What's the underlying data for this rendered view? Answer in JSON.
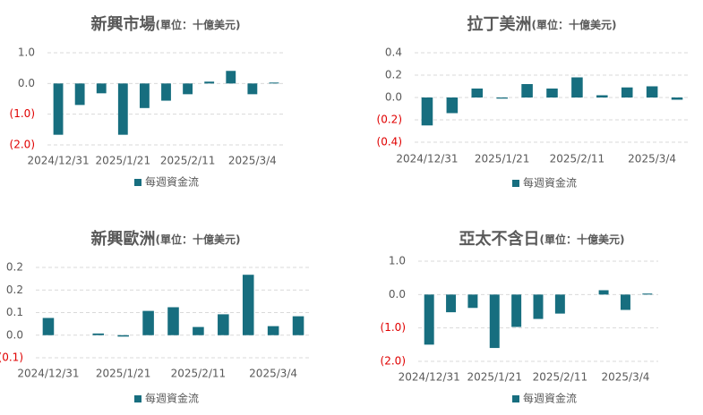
{
  "chart_data": [
    {
      "type": "bar",
      "title": "新興市場",
      "unit": "(單位：十億美元)",
      "categories": [
        "2024/12/31",
        null,
        null,
        "2025/1/21",
        null,
        null,
        "2025/2/11",
        null,
        null,
        "2025/3/4",
        null
      ],
      "series": [
        {
          "name": "每週資金流",
          "color": "#176e7f",
          "values": [
            -1.67,
            -0.7,
            -0.32,
            -1.67,
            -0.8,
            -0.56,
            -0.35,
            0.06,
            0.41,
            -0.35,
            0.03
          ]
        }
      ],
      "ylim": [
        -2,
        1
      ],
      "yticks": [
        {
          "value": 1,
          "label": "1.0"
        },
        {
          "value": 0,
          "label": "0.0"
        },
        {
          "value": -1,
          "label": "(1.0)"
        },
        {
          "value": -2,
          "label": "(2.0)"
        }
      ],
      "grid": true,
      "legend": "bottom",
      "negative_label_color": "#e00000"
    },
    {
      "type": "bar",
      "title": "拉丁美洲",
      "unit": "(單位：十億美元)",
      "categories": [
        "2024/12/31",
        null,
        null,
        "2025/1/21",
        null,
        null,
        "2025/2/11",
        null,
        null,
        "2025/3/4",
        null
      ],
      "series": [
        {
          "name": "每週資金流",
          "color": "#176e7f",
          "values": [
            -0.25,
            -0.14,
            0.08,
            -0.01,
            0.12,
            0.08,
            0.18,
            0.02,
            0.09,
            0.1,
            -0.02
          ]
        }
      ],
      "ylim": [
        -0.4,
        0.4
      ],
      "yticks": [
        0.4,
        0.2,
        {
          "value": 0,
          "label": "0.0"
        },
        {
          "value": -0.2,
          "label": "(0.2)"
        },
        {
          "value": -0.4,
          "label": "(0.4)"
        }
      ],
      "grid": true,
      "legend": "bottom",
      "negative_label_color": "#e00000"
    },
    {
      "type": "bar",
      "title": "新興歐洲",
      "unit": "(單位：十億美元)",
      "categories": [
        "2024/12/31",
        null,
        null,
        "2025/1/21",
        null,
        null,
        "2025/2/11",
        null,
        null,
        "2025/3/4",
        null
      ],
      "series": [
        {
          "name": "每週資金流",
          "color": "#176e7f",
          "values": [
            0.061,
            0,
            0.006,
            -0.005,
            0.086,
            0.099,
            0.029,
            0.074,
            0.214,
            0.032,
            0.067
          ]
        }
      ],
      "ylim": [
        -0.08,
        0.24
      ],
      "yticks": [
        {
          "value": 0.24,
          "label": "0.2"
        },
        {
          "value": 0.16,
          "label": "0.2"
        },
        {
          "value": 0.08,
          "label": "0.1"
        },
        {
          "value": 0,
          "label": "0.0"
        },
        {
          "value": -0.08,
          "label": "(0.1)"
        }
      ],
      "grid": true,
      "legend": "bottom",
      "negative_label_color": "#e00000"
    },
    {
      "type": "bar",
      "title": "亞太不含日",
      "unit": "(單位：十億美元)",
      "categories": [
        "2024/12/31",
        null,
        null,
        "2025/1/21",
        null,
        null,
        "2025/2/11",
        null,
        null,
        "2025/3/4",
        null
      ],
      "series": [
        {
          "name": "每週資金流",
          "color": "#176e7f",
          "values": [
            -1.5,
            -0.53,
            -0.4,
            -1.6,
            -0.97,
            -0.73,
            -0.57,
            0,
            0.13,
            -0.46,
            0.03
          ]
        }
      ],
      "ylim": [
        -2,
        1
      ],
      "yticks": [
        {
          "value": 1,
          "label": "1.0"
        },
        {
          "value": 0,
          "label": "0.0"
        },
        {
          "value": -1,
          "label": "(1.0)"
        },
        {
          "value": -2,
          "label": "(2.0)"
        }
      ],
      "grid": true,
      "legend": "bottom",
      "negative_label_color": "#e00000"
    }
  ]
}
